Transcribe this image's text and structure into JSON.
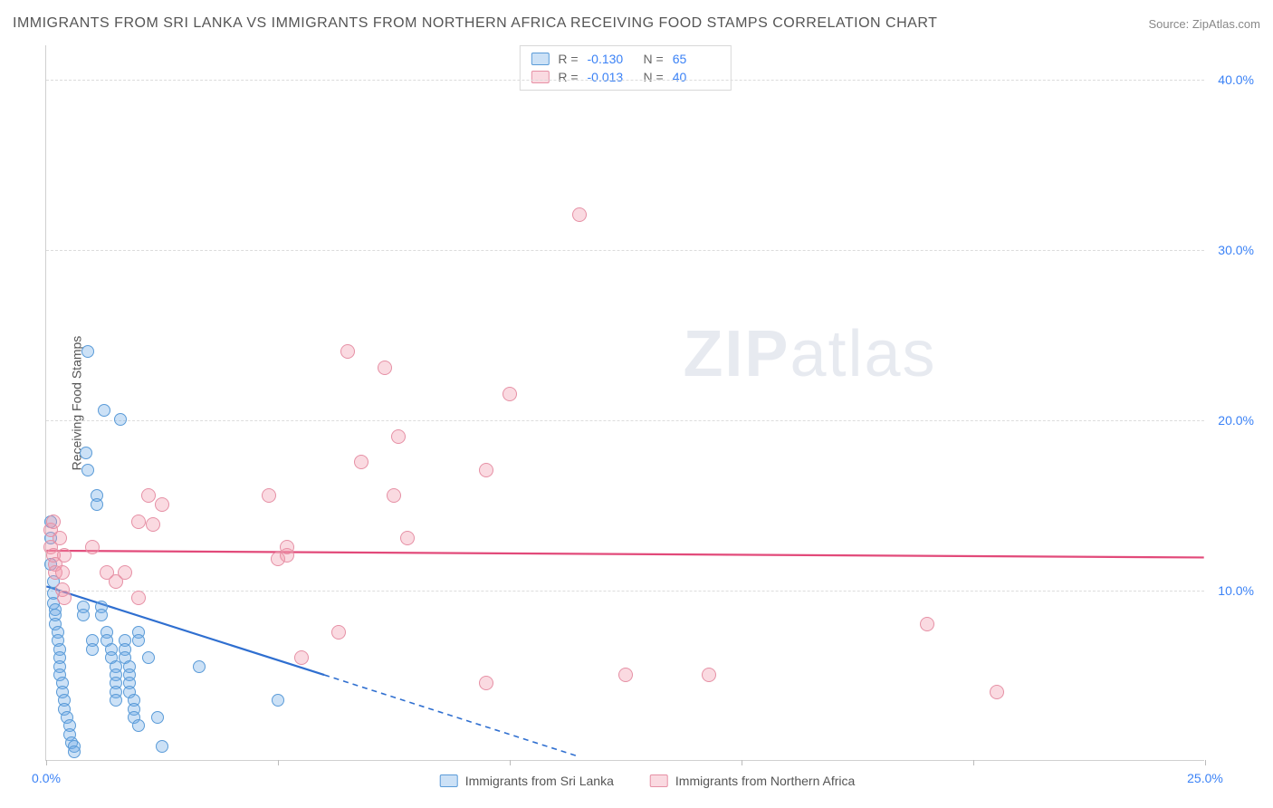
{
  "header": {
    "title": "IMMIGRANTS FROM SRI LANKA VS IMMIGRANTS FROM NORTHERN AFRICA RECEIVING FOOD STAMPS CORRELATION CHART",
    "source_prefix": "Source: ",
    "source": "ZipAtlas.com"
  },
  "chart": {
    "type": "scatter",
    "ylabel": "Receiving Food Stamps",
    "watermark_bold": "ZIP",
    "watermark_light": "atlas",
    "xlim": [
      0,
      25
    ],
    "ylim": [
      0,
      42
    ],
    "y_ticks": [
      10,
      20,
      30,
      40
    ],
    "y_tick_labels": [
      "10.0%",
      "20.0%",
      "30.0%",
      "40.0%"
    ],
    "x_ticks": [
      0,
      5,
      10,
      15,
      20,
      25
    ],
    "x_tick_label_first": "0.0%",
    "x_tick_label_last": "25.0%",
    "background_color": "#ffffff",
    "grid_color": "#dcdcdc",
    "axis_color": "#d0d0d0",
    "tick_label_color": "#3b82f6",
    "series": [
      {
        "name": "Immigrants from Sri Lanka",
        "fill": "rgba(110,170,230,0.35)",
        "stroke": "#5a9bd8",
        "line_color": "#2f6fd0",
        "marker_radius": 7,
        "r_label": "R =",
        "r_value": "-0.130",
        "n_label": "N =",
        "n_value": "65",
        "trend": {
          "x1": 0,
          "y1": 10.2,
          "x2_solid": 6.0,
          "y2_solid": 5.0,
          "x2_dash": 11.5,
          "y2_dash": 0.2
        },
        "points": [
          [
            0.1,
            14.0
          ],
          [
            0.1,
            13.0
          ],
          [
            0.1,
            11.5
          ],
          [
            0.15,
            10.5
          ],
          [
            0.15,
            9.8
          ],
          [
            0.15,
            9.2
          ],
          [
            0.2,
            8.8
          ],
          [
            0.2,
            8.5
          ],
          [
            0.2,
            8.0
          ],
          [
            0.25,
            7.5
          ],
          [
            0.25,
            7.0
          ],
          [
            0.3,
            6.5
          ],
          [
            0.3,
            6.0
          ],
          [
            0.3,
            5.5
          ],
          [
            0.3,
            5.0
          ],
          [
            0.35,
            4.5
          ],
          [
            0.35,
            4.0
          ],
          [
            0.4,
            3.5
          ],
          [
            0.4,
            3.0
          ],
          [
            0.45,
            2.5
          ],
          [
            0.5,
            2.0
          ],
          [
            0.5,
            1.5
          ],
          [
            0.55,
            1.0
          ],
          [
            0.6,
            0.8
          ],
          [
            0.6,
            0.5
          ],
          [
            0.8,
            9.0
          ],
          [
            0.8,
            8.5
          ],
          [
            0.85,
            18.0
          ],
          [
            0.9,
            17.0
          ],
          [
            0.9,
            24.0
          ],
          [
            1.0,
            7.0
          ],
          [
            1.0,
            6.5
          ],
          [
            1.1,
            15.5
          ],
          [
            1.1,
            15.0
          ],
          [
            1.2,
            9.0
          ],
          [
            1.2,
            8.5
          ],
          [
            1.25,
            20.5
          ],
          [
            1.3,
            7.5
          ],
          [
            1.3,
            7.0
          ],
          [
            1.4,
            6.5
          ],
          [
            1.4,
            6.0
          ],
          [
            1.5,
            5.5
          ],
          [
            1.5,
            5.0
          ],
          [
            1.5,
            4.5
          ],
          [
            1.5,
            4.0
          ],
          [
            1.5,
            3.5
          ],
          [
            1.6,
            20.0
          ],
          [
            1.7,
            7.0
          ],
          [
            1.7,
            6.5
          ],
          [
            1.7,
            6.0
          ],
          [
            1.8,
            5.5
          ],
          [
            1.8,
            5.0
          ],
          [
            1.8,
            4.5
          ],
          [
            1.8,
            4.0
          ],
          [
            1.9,
            3.5
          ],
          [
            1.9,
            3.0
          ],
          [
            1.9,
            2.5
          ],
          [
            2.0,
            2.0
          ],
          [
            2.0,
            7.5
          ],
          [
            2.0,
            7.0
          ],
          [
            2.2,
            6.0
          ],
          [
            2.4,
            2.5
          ],
          [
            2.5,
            0.8
          ],
          [
            3.3,
            5.5
          ],
          [
            5.0,
            3.5
          ]
        ]
      },
      {
        "name": "Immigrants from Northern Africa",
        "fill": "rgba(240,150,170,0.35)",
        "stroke": "#e690a5",
        "line_color": "#e24a7a",
        "marker_radius": 8,
        "r_label": "R =",
        "r_value": "-0.013",
        "n_label": "N =",
        "n_value": "40",
        "trend": {
          "x1": 0,
          "y1": 12.3,
          "x2_solid": 25,
          "y2_solid": 11.9,
          "x2_dash": 25,
          "y2_dash": 11.9
        },
        "points": [
          [
            0.1,
            13.5
          ],
          [
            0.1,
            12.5
          ],
          [
            0.15,
            14.0
          ],
          [
            0.15,
            12.0
          ],
          [
            0.2,
            11.5
          ],
          [
            0.2,
            11.0
          ],
          [
            0.3,
            13.0
          ],
          [
            0.4,
            12.0
          ],
          [
            1.3,
            11.0
          ],
          [
            1.5,
            10.5
          ],
          [
            1.7,
            11.0
          ],
          [
            2.0,
            9.5
          ],
          [
            2.0,
            14.0
          ],
          [
            2.2,
            15.5
          ],
          [
            2.3,
            13.8
          ],
          [
            2.5,
            15.0
          ],
          [
            4.8,
            15.5
          ],
          [
            5.0,
            11.8
          ],
          [
            5.2,
            12.0
          ],
          [
            5.2,
            12.5
          ],
          [
            5.5,
            6.0
          ],
          [
            6.3,
            7.5
          ],
          [
            6.5,
            24.0
          ],
          [
            6.8,
            17.5
          ],
          [
            7.3,
            23.0
          ],
          [
            7.5,
            15.5
          ],
          [
            7.6,
            19.0
          ],
          [
            7.8,
            13.0
          ],
          [
            9.5,
            17.0
          ],
          [
            9.5,
            4.5
          ],
          [
            10.0,
            21.5
          ],
          [
            11.5,
            32.0
          ],
          [
            12.5,
            5.0
          ],
          [
            14.3,
            5.0
          ],
          [
            19.0,
            8.0
          ],
          [
            20.5,
            4.0
          ],
          [
            0.35,
            11.0
          ],
          [
            0.35,
            10.0
          ],
          [
            0.4,
            9.5
          ],
          [
            1.0,
            12.5
          ]
        ]
      }
    ]
  }
}
